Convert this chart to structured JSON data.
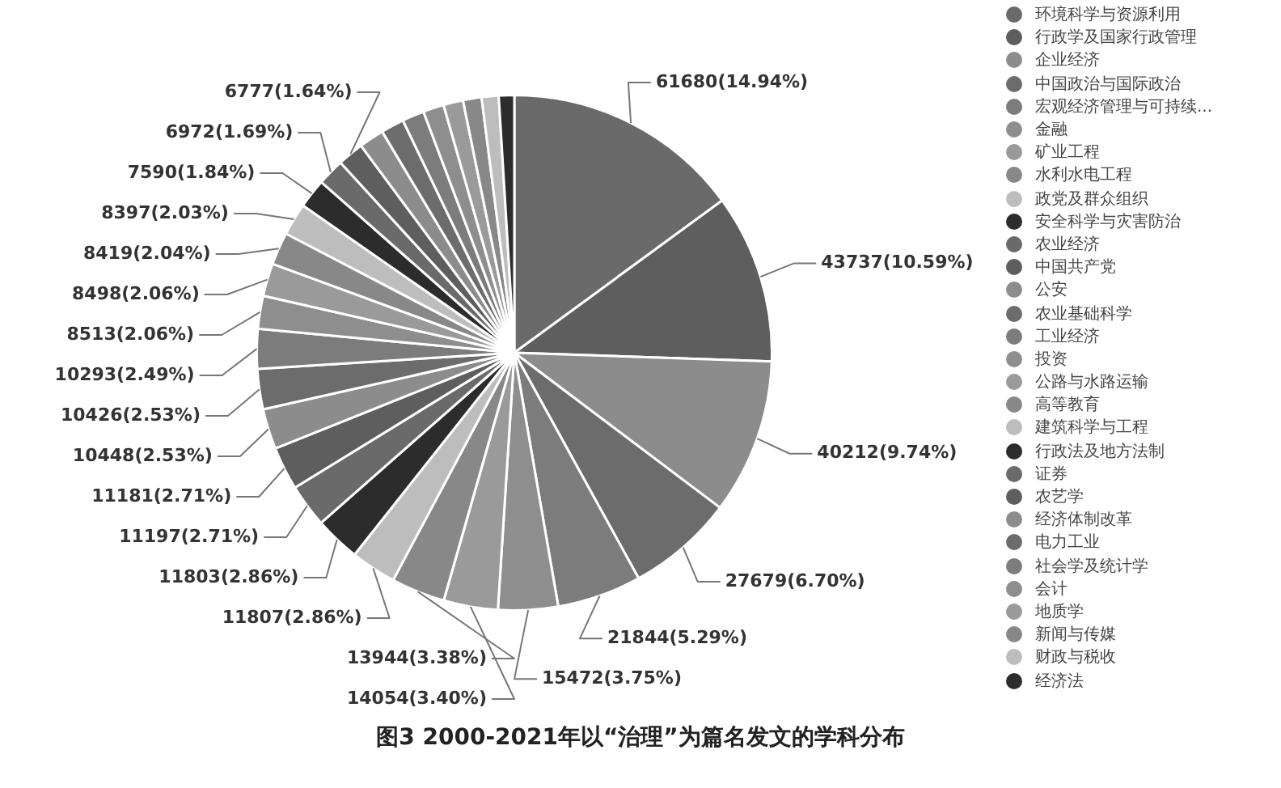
{
  "chart_data": {
    "type": "pie",
    "title": "图3  2000-2021年以“治理”为篇名发文的学科分布",
    "legend": "right",
    "categories": [
      "环境科学与资源利用",
      "行政学及国家行政管理",
      "企业经济",
      "中国政治与国际政治",
      "宏观经济管理与可持续...",
      "金融",
      "矿业工程",
      "水利水电工程",
      "政党及群众组织",
      "安全科学与灾害防治",
      "农业经济",
      "中国共产党",
      "公安",
      "农业基础科学",
      "工业经济",
      "投资",
      "公路与水路运输",
      "高等教育",
      "建筑科学与工程",
      "行政法及地方法制",
      "证券",
      "农艺学",
      "经济体制改革",
      "电力工业",
      "社会学及统计学",
      "会计",
      "地质学",
      "新闻与传媒",
      "财政与税收",
      "经济法"
    ],
    "values": [
      61680,
      43737,
      40212,
      27679,
      21844,
      15472,
      14054,
      13944,
      11807,
      11803,
      11197,
      11181,
      10448,
      10426,
      10293,
      8513,
      8498,
      8419,
      8397,
      7590,
      6972,
      6777,
      6500,
      6000,
      5700,
      5400,
      5100,
      4800,
      4400,
      4000
    ],
    "value_labels": [
      "61680(14.94%)",
      "43737(10.59%)",
      "40212(9.74%)",
      "27679(6.70%)",
      "21844(5.29%)",
      "15472(3.75%)",
      "14054(3.40%)",
      "13944(3.38%)",
      "11807(2.86%)",
      "11803(2.86%)",
      "11197(2.71%)",
      "11181(2.71%)",
      "10448(2.53%)",
      "10426(2.53%)",
      "10293(2.49%)",
      "8513(2.06%)",
      "8498(2.06%)",
      "8419(2.04%)",
      "8397(2.03%)",
      "7590(1.84%)",
      "6972(1.69%)",
      "6777(1.64%)",
      null,
      null,
      null,
      null,
      null,
      null,
      null,
      null
    ],
    "colors": [
      "#6a6a6a",
      "#5e5e5e",
      "#8c8c8c",
      "#6c6c6c",
      "#7c7c7c",
      "#8e8e8e",
      "#9a9a9a",
      "#888888",
      "#bdbdbd",
      "#2c2c2c",
      "#6a6a6a",
      "#5e5e5e",
      "#8c8c8c",
      "#6c6c6c",
      "#7c7c7c",
      "#8e8e8e",
      "#9a9a9a",
      "#888888",
      "#bdbdbd",
      "#2c2c2c",
      "#6a6a6a",
      "#5e5e5e",
      "#8c8c8c",
      "#6c6c6c",
      "#7c7c7c",
      "#8e8e8e",
      "#9a9a9a",
      "#888888",
      "#bdbdbd",
      "#2c2c2c"
    ]
  }
}
